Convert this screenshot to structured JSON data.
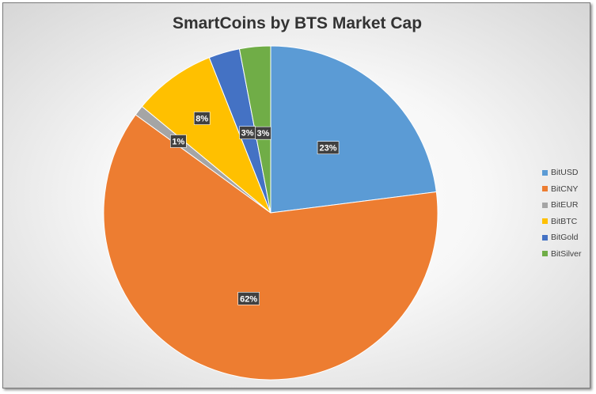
{
  "chart_data": {
    "type": "pie",
    "title": "SmartCoins by BTS Market Cap",
    "categories": [
      "BitUSD",
      "BitCNY",
      "BitEUR",
      "BitBTC",
      "BitGold",
      "BitSilver"
    ],
    "values": [
      23,
      62,
      1,
      8,
      3,
      3
    ],
    "data_labels": [
      "23%",
      "62%",
      "1%",
      "8%",
      "3%",
      "3%"
    ],
    "colors": [
      "#5B9BD5",
      "#ED7D31",
      "#A5A5A5",
      "#FFC000",
      "#4472C4",
      "#70AD47"
    ],
    "start_angle_deg": 0,
    "direction": "clockwise",
    "legend": "right",
    "grid": false
  }
}
